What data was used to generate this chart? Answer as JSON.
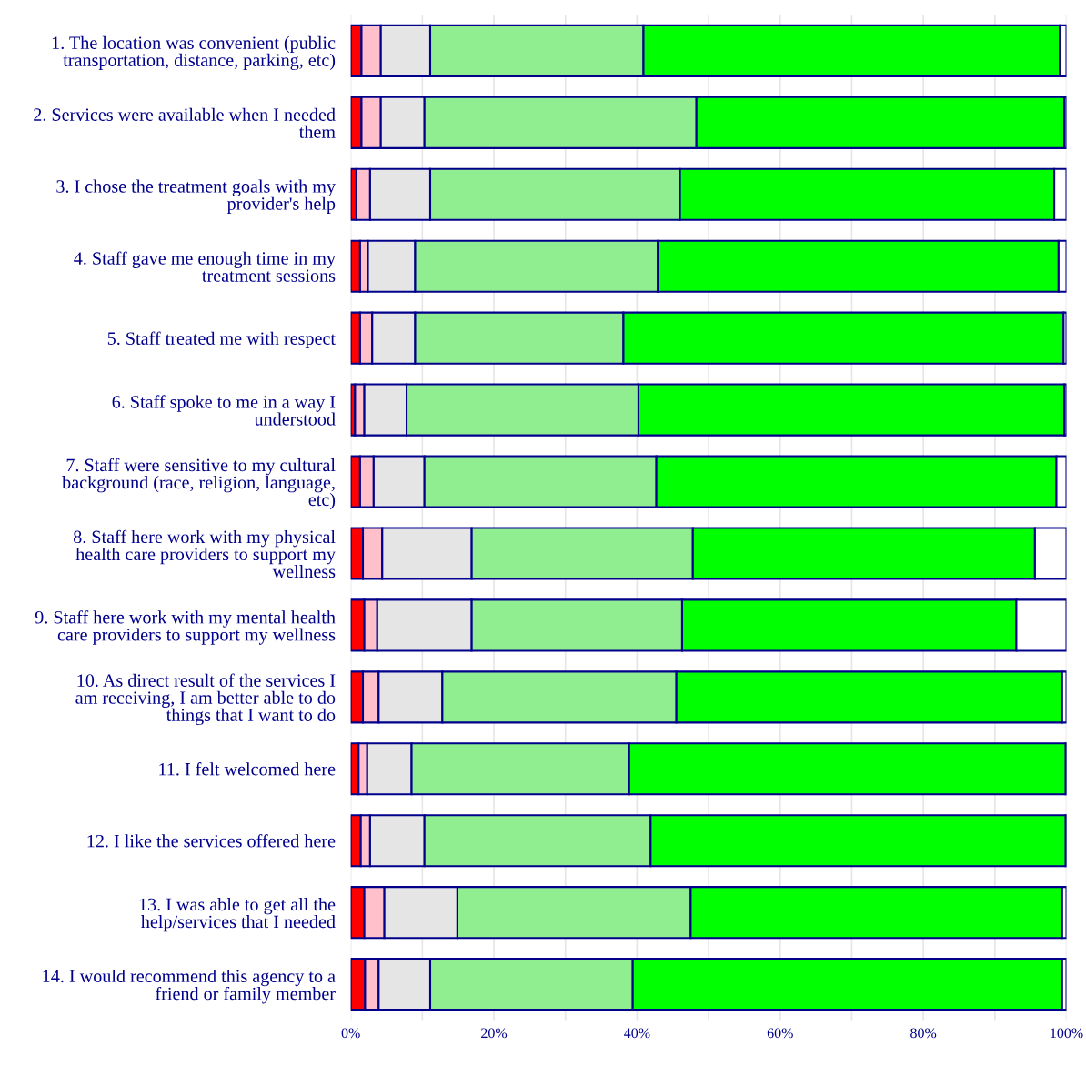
{
  "chart_data": {
    "type": "bar",
    "orientation": "horizontal",
    "stacked": true,
    "categories": [
      "1. The location was convenient (public\ntransportation, distance, parking, etc)",
      "2. Services were available when I needed\nthem",
      "3. I chose the treatment goals with my\nprovider's help",
      "4. Staff gave me enough time in my\ntreatment sessions",
      "5. Staff treated me with respect",
      "6. Staff spoke to me in a way I\nunderstood",
      "7. Staff were sensitive to my cultural\nbackground (race, religion, language,\netc)",
      "8. Staff here work with my physical\nhealth care providers to support my\nwellness",
      "9. Staff here work with my mental health\ncare providers to support my wellness",
      "10. As direct result of the services I\nam receiving, I am better able to do\nthings that I want to do",
      "11. I felt welcomed here",
      "12. I like the services offered here",
      "13. I was able to get all the\nhelp/services that I needed",
      "14. I would recommend this agency to a\nfriend or family member"
    ],
    "series": [
      {
        "color": "#ff0000",
        "values": [
          1.5,
          1.5,
          0.8,
          1.3,
          1.3,
          0.6,
          1.3,
          1.7,
          1.9,
          1.7,
          1.1,
          1.4,
          1.9,
          2.0
        ]
      },
      {
        "color": "#ffc0cb",
        "values": [
          2.7,
          2.7,
          1.9,
          1.1,
          1.7,
          1.3,
          1.9,
          2.7,
          1.8,
          2.2,
          1.2,
          1.3,
          2.8,
          1.9
        ]
      },
      {
        "color": "#e5e5e5",
        "values": [
          6.9,
          6.1,
          8.4,
          6.6,
          6.0,
          5.9,
          7.1,
          12.5,
          13.2,
          8.9,
          6.2,
          7.6,
          10.2,
          7.2
        ]
      },
      {
        "color": "#90ee90",
        "values": [
          29.8,
          38.0,
          34.9,
          33.9,
          29.1,
          32.4,
          32.4,
          30.9,
          29.4,
          32.7,
          30.4,
          31.6,
          32.6,
          28.3
        ]
      },
      {
        "color": "#00ff00",
        "values": [
          58.2,
          51.4,
          52.3,
          56.0,
          61.5,
          59.5,
          55.9,
          47.8,
          46.7,
          53.9,
          61.0,
          58.0,
          51.9,
          60.0
        ]
      },
      {
        "color": "#ffffff",
        "values": [
          0.9,
          0.3,
          1.7,
          1.1,
          0.4,
          0.3,
          1.4,
          4.4,
          7.0,
          0.6,
          0.1,
          0.1,
          0.6,
          0.6
        ]
      }
    ],
    "xlim": [
      0,
      100
    ],
    "xticks": [
      {
        "value": 0,
        "label": "0%"
      },
      {
        "value": 10,
        "label": null
      },
      {
        "value": 20,
        "label": "20%"
      },
      {
        "value": 30,
        "label": null
      },
      {
        "value": 40,
        "label": "40%"
      },
      {
        "value": 50,
        "label": null
      },
      {
        "value": 60,
        "label": "60%"
      },
      {
        "value": 70,
        "label": null
      },
      {
        "value": 80,
        "label": "80%"
      },
      {
        "value": 90,
        "label": null
      },
      {
        "value": 100,
        "label": "100%"
      }
    ],
    "grid": "x"
  }
}
